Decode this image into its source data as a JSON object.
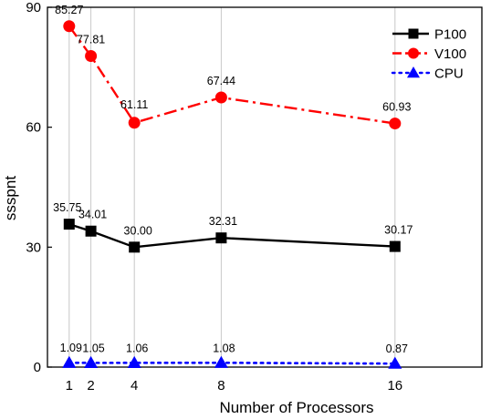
{
  "chart_data": {
    "type": "line",
    "title": "",
    "xlabel": "Number of Processors",
    "ylabel": "ssspnt",
    "x": [
      1,
      2,
      4,
      8,
      16
    ],
    "x_ticks": [
      "1",
      "2",
      "4",
      "8",
      "16"
    ],
    "y_ticks": [
      "0",
      "30",
      "60",
      "90"
    ],
    "xlim": [
      0,
      20
    ],
    "ylim": [
      0,
      90
    ],
    "grid": "vertical",
    "legend_position": "top-right",
    "series": [
      {
        "name": "P100",
        "values": [
          35.75,
          34.01,
          30.0,
          32.31,
          30.17
        ],
        "labels": [
          "35.75",
          "34.01",
          "30.00",
          "32.31",
          "30.17"
        ],
        "color": "#000000",
        "marker": "square",
        "line": "solid"
      },
      {
        "name": "V100",
        "values": [
          85.27,
          77.81,
          61.11,
          67.44,
          60.93
        ],
        "labels": [
          "85.27",
          "77.81",
          "61.11",
          "67.44",
          "60.93"
        ],
        "color": "#ff0000",
        "marker": "circle",
        "line": "dash-dot"
      },
      {
        "name": "CPU",
        "values": [
          1.09,
          1.05,
          1.06,
          1.08,
          0.87
        ],
        "labels": [
          "1.09",
          "1.05",
          "1.06",
          "1.08",
          "0.87"
        ],
        "color": "#0000ff",
        "marker": "triangle",
        "line": "dotted"
      }
    ]
  }
}
